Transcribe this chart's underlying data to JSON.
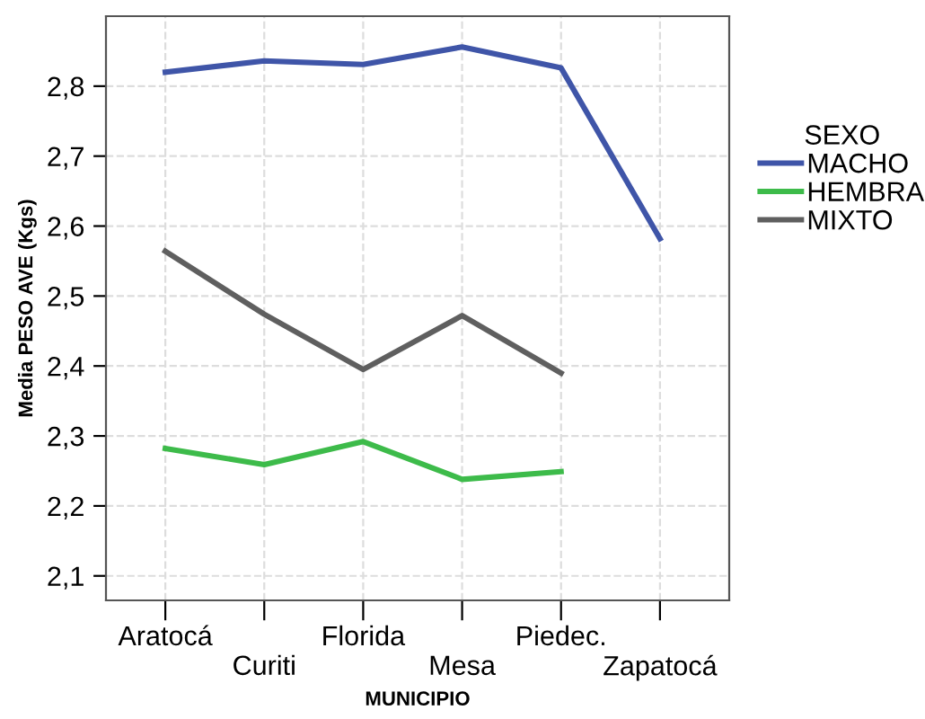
{
  "chart_data": {
    "type": "line",
    "xlabel": "MUNICIPIO",
    "ylabel": "Media PESO AVE (Kgs)",
    "legend_title": "SEXO",
    "categories": [
      "Aratocá",
      "Curiti",
      "Florida",
      "Mesa",
      "Piedec.",
      "Zapatocá"
    ],
    "series": [
      {
        "name": "MACHO",
        "color": "#3f55a8",
        "values": [
          2.82,
          2.836,
          2.831,
          2.856,
          2.826,
          2.582
        ]
      },
      {
        "name": "HEMBRA",
        "color": "#3dbb4a",
        "values": [
          2.282,
          2.259,
          2.292,
          2.238,
          2.249,
          null
        ]
      },
      {
        "name": "MIXTO",
        "color": "#5f5f5f",
        "values": [
          2.564,
          2.474,
          2.395,
          2.472,
          2.39,
          null
        ]
      }
    ],
    "ylim": [
      2.065,
      2.9
    ],
    "yticks": [
      {
        "value": 2.1,
        "label": "2,1"
      },
      {
        "value": 2.2,
        "label": "2,2"
      },
      {
        "value": 2.3,
        "label": "2,3"
      },
      {
        "value": 2.4,
        "label": "2,4"
      },
      {
        "value": 2.5,
        "label": "2,5"
      },
      {
        "value": 2.6,
        "label": "2,6"
      },
      {
        "value": 2.7,
        "label": "2,7"
      },
      {
        "value": 2.8,
        "label": "2,8"
      }
    ],
    "grid": true,
    "legend": "right",
    "marker": "none",
    "line_style": "solid"
  }
}
